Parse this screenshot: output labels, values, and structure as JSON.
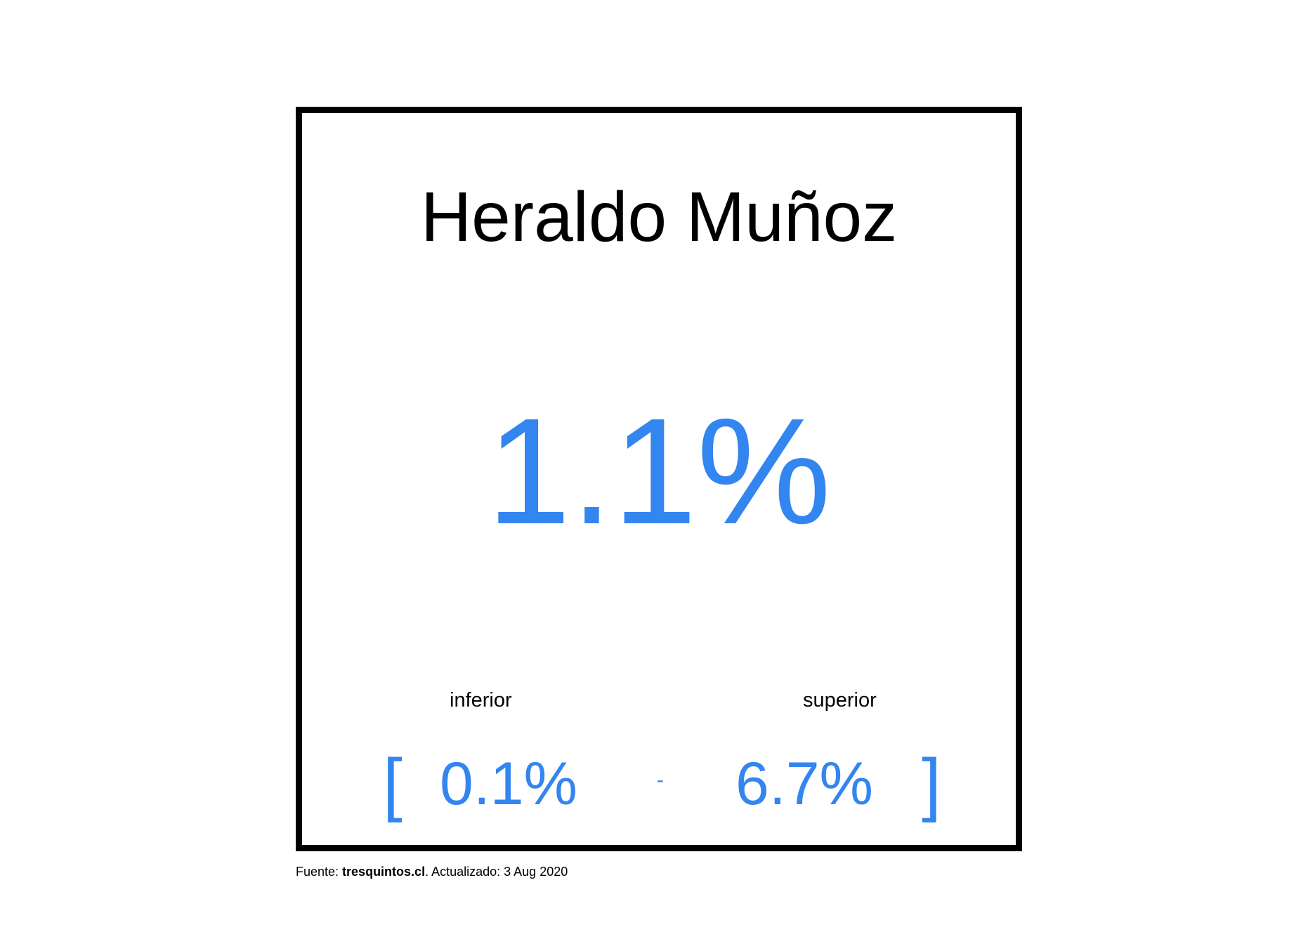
{
  "candidate_name": "Heraldo Muñoz",
  "estimate": "1.1%",
  "interval": {
    "lower_label": "inferior",
    "upper_label": "superior",
    "open_bracket": "[",
    "lower_value": "0.1%",
    "separator": "-",
    "upper_value": "6.7%",
    "close_bracket": "]"
  },
  "footer": {
    "prefix": "Fuente: ",
    "source_name": "tresquintos.cl",
    "updated_text": ". Actualizado: 3 Aug 2020"
  },
  "colors": {
    "accent_blue": "#3385f0",
    "text": "#000000",
    "frame": "#000000",
    "background": "#ffffff"
  }
}
